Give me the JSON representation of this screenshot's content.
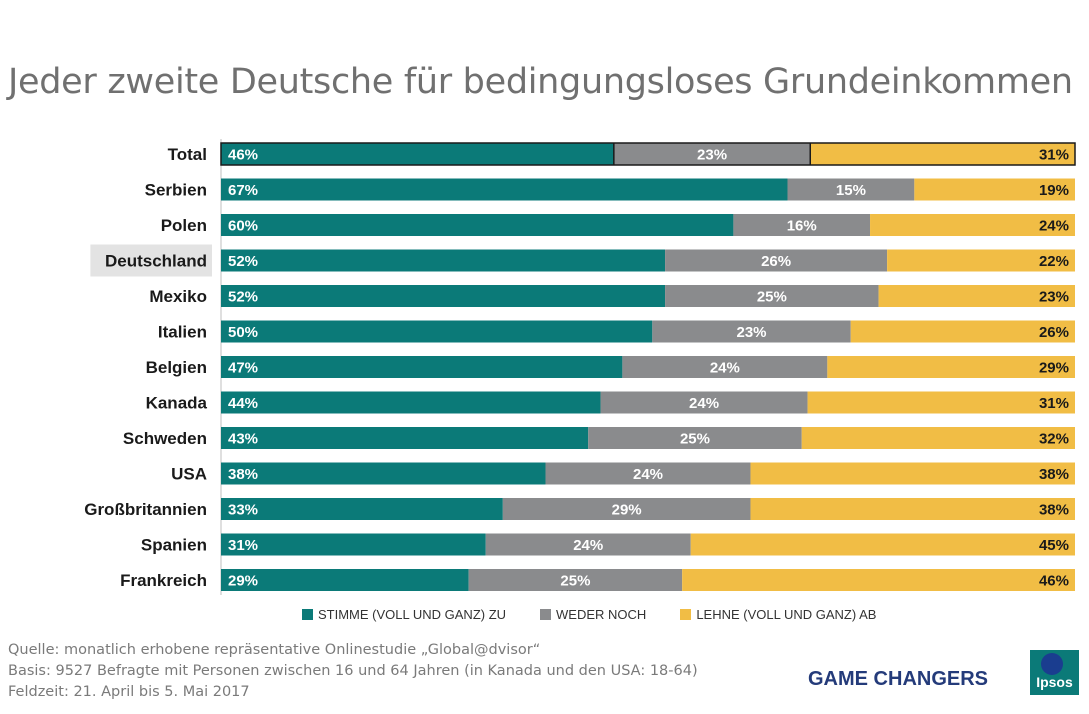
{
  "title": "Jeder zweite Deutsche für bedingungsloses Grundeinkommen",
  "colors": {
    "agree": "#0b7a78",
    "neutral": "#8a8b8d",
    "disagree": "#f1bd45",
    "highlight_label_bg": "#e3e3e3"
  },
  "chart_data": {
    "type": "bar",
    "orientation": "horizontal",
    "stacked": "100%",
    "title": "Jeder zweite Deutsche für bedingungsloses Grundeinkommen",
    "categories": [
      "Total",
      "Serbien",
      "Polen",
      "Deutschland",
      "Mexiko",
      "Italien",
      "Belgien",
      "Kanada",
      "Schweden",
      "USA",
      "Großbritannien",
      "Spanien",
      "Frankreich"
    ],
    "highlighted_category": "Deutschland",
    "outlined_category": "Total",
    "series": [
      {
        "name": "STIMME (VOLL UND GANZ) ZU",
        "values": [
          46,
          67,
          60,
          52,
          52,
          50,
          47,
          44,
          43,
          38,
          33,
          31,
          29
        ]
      },
      {
        "name": "WEDER NOCH",
        "values": [
          23,
          15,
          16,
          26,
          25,
          23,
          24,
          24,
          25,
          24,
          29,
          24,
          25
        ]
      },
      {
        "name": "LEHNE (VOLL UND GANZ) AB",
        "values": [
          31,
          19,
          24,
          22,
          23,
          26,
          29,
          31,
          32,
          38,
          38,
          45,
          46
        ]
      }
    ],
    "value_suffix": "%",
    "legend_position": "bottom"
  },
  "footer": {
    "source": "Quelle: monatlich erhobene repräsentative Onlinestudie „Global@dvisor“",
    "basis": "Basis: 9527 Befragte mit Personen zwischen 16 und 64 Jahren (in Kanada und den USA: 18-64)",
    "fieldwork": "Feldzeit: 21. April bis 5. Mai 2017"
  },
  "brand": {
    "tagline": "GAME CHANGERS",
    "logo_text": "Ipsos"
  }
}
